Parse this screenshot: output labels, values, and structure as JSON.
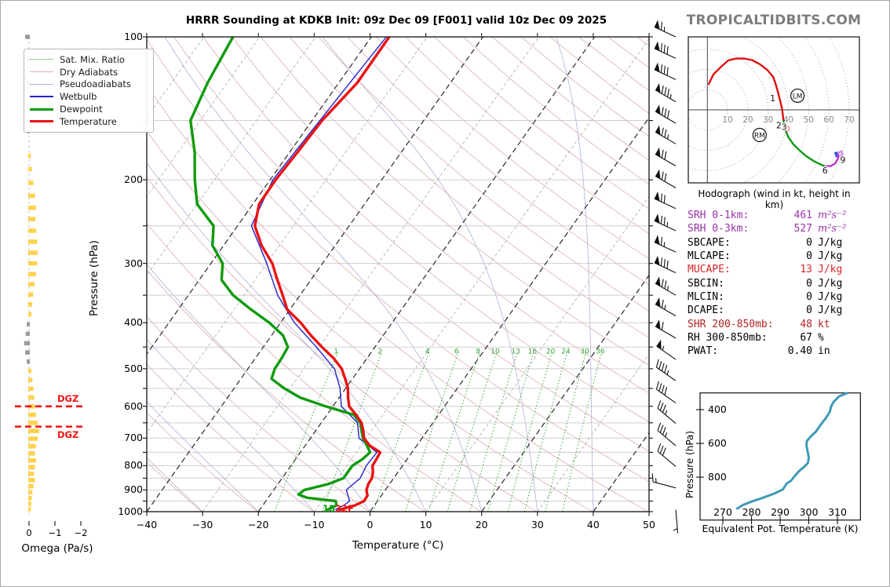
{
  "title": "HRRR Sounding at KDKB Init: 09z Dec 09 [F001] valid 10z Dec 09 2025",
  "watermark": "TROPICALTIDBITS.COM",
  "legend": {
    "items": [
      {
        "label": "Sat. Mix. Ratio",
        "key": "mix"
      },
      {
        "label": "Dry Adiabats",
        "key": "dry"
      },
      {
        "label": "Pseudoadiabats",
        "key": "pseudo"
      },
      {
        "label": "Wetbulb",
        "key": "wet"
      },
      {
        "label": "Dewpoint",
        "key": "dew"
      },
      {
        "label": "Temperature",
        "key": "tmp"
      }
    ]
  },
  "stats": {
    "rows": [
      {
        "label": "SRH 0-1km:",
        "value": "461",
        "unit": "m²s⁻²",
        "color": "#9932a8",
        "math": true
      },
      {
        "label": "SRH 0-3km:",
        "value": "527",
        "unit": "m²s⁻²",
        "color": "#9932a8",
        "math": true
      },
      {
        "label": "SBCAPE:",
        "value": "0",
        "unit": "J/kg",
        "color": "#000000"
      },
      {
        "label": "MLCAPE:",
        "value": "0",
        "unit": "J/kg",
        "color": "#000000"
      },
      {
        "label": "MUCAPE:",
        "value": "13",
        "unit": "J/kg",
        "color": "#d62728"
      },
      {
        "label": "SBCIN:",
        "value": "0",
        "unit": "J/kg",
        "color": "#000000"
      },
      {
        "label": "MLCIN:",
        "value": "0",
        "unit": "J/kg",
        "color": "#000000"
      },
      {
        "label": "DCAPE:",
        "value": "0",
        "unit": "J/kg",
        "color": "#000000"
      },
      {
        "label": "SHR 200-850mb:",
        "value": "48",
        "unit": "kt",
        "color": "#b22222"
      },
      {
        "label": "RH 300-850mb:",
        "value": "67",
        "unit": "%",
        "color": "#000000"
      },
      {
        "label": "PWAT:",
        "value": "0.40",
        "unit": "in",
        "color": "#000000"
      }
    ]
  },
  "chart_data": {
    "type": "skew-t sounding",
    "skewt": {
      "xlabel": "Temperature (°C)",
      "ylabel": "Pressure (hPa)",
      "temp_ticks": [
        -40,
        -30,
        -20,
        -10,
        0,
        10,
        20,
        30,
        40,
        50
      ],
      "pressure_ticks": [
        100,
        200,
        300,
        400,
        500,
        600,
        700,
        800,
        900,
        1000
      ],
      "temp_range": [
        -40,
        50
      ],
      "pressure_range": [
        100,
        1000
      ],
      "mixing_ratios": [
        1,
        2,
        4,
        6,
        8,
        10,
        13,
        16,
        20,
        24,
        30,
        36
      ],
      "surface_labels": {
        "dewpoint_f": "18",
        "temperature_f": "22F"
      },
      "dgz": {
        "label": "DGZ",
        "levels_hpa": [
          600,
          662
        ]
      },
      "temperature": [
        [
          100,
          -56.8
        ],
        [
          125,
          -56.7
        ],
        [
          150,
          -58.2
        ],
        [
          175,
          -58.6
        ],
        [
          200,
          -59
        ],
        [
          225,
          -58.9
        ],
        [
          250,
          -56.9
        ],
        [
          275,
          -53.2
        ],
        [
          300,
          -49
        ],
        [
          325,
          -46
        ],
        [
          350,
          -43.1
        ],
        [
          375,
          -40.5
        ],
        [
          400,
          -36.4
        ],
        [
          425,
          -33
        ],
        [
          450,
          -29.5
        ],
        [
          475,
          -26
        ],
        [
          500,
          -23.2
        ],
        [
          525,
          -21.3
        ],
        [
          550,
          -19.6
        ],
        [
          575,
          -18.4
        ],
        [
          600,
          -17.1
        ],
        [
          625,
          -14.8
        ],
        [
          650,
          -12.8
        ],
        [
          675,
          -11.5
        ],
        [
          700,
          -10.4
        ],
        [
          725,
          -8.5
        ],
        [
          750,
          -5.7
        ],
        [
          775,
          -5.5
        ],
        [
          800,
          -5.4
        ],
        [
          825,
          -4.5
        ],
        [
          850,
          -3.9
        ],
        [
          875,
          -3.8
        ],
        [
          900,
          -3.4
        ],
        [
          925,
          -2.5
        ],
        [
          950,
          -2.4
        ],
        [
          970,
          -3.5
        ],
        [
          990,
          -5.6
        ]
      ],
      "dewpoint": [
        [
          100,
          -84.8
        ],
        [
          125,
          -83.5
        ],
        [
          150,
          -81.8
        ],
        [
          175,
          -77
        ],
        [
          200,
          -73.5
        ],
        [
          225,
          -70
        ],
        [
          250,
          -64.3
        ],
        [
          275,
          -62
        ],
        [
          300,
          -57.9
        ],
        [
          325,
          -56
        ],
        [
          350,
          -52
        ],
        [
          375,
          -47
        ],
        [
          400,
          -42
        ],
        [
          425,
          -38
        ],
        [
          450,
          -35.6
        ],
        [
          475,
          -35.3
        ],
        [
          500,
          -35.2
        ],
        [
          525,
          -34.5
        ],
        [
          550,
          -31
        ],
        [
          575,
          -27
        ],
        [
          600,
          -21.3
        ],
        [
          625,
          -15.2
        ],
        [
          650,
          -13
        ],
        [
          675,
          -11.8
        ],
        [
          700,
          -10.6
        ],
        [
          725,
          -9
        ],
        [
          750,
          -7.5
        ],
        [
          775,
          -8
        ],
        [
          800,
          -9
        ],
        [
          825,
          -9
        ],
        [
          850,
          -9
        ],
        [
          875,
          -11
        ],
        [
          900,
          -14.5
        ],
        [
          920,
          -15
        ],
        [
          935,
          -13
        ],
        [
          950,
          -7.5
        ],
        [
          970,
          -6.8
        ],
        [
          990,
          -7.8
        ]
      ],
      "wetbulb": [
        [
          100,
          -57.3
        ],
        [
          150,
          -58.6
        ],
        [
          200,
          -59.5
        ],
        [
          250,
          -57.5
        ],
        [
          300,
          -50
        ],
        [
          350,
          -44
        ],
        [
          400,
          -37.5
        ],
        [
          450,
          -30.5
        ],
        [
          500,
          -24.5
        ],
        [
          550,
          -21
        ],
        [
          600,
          -18.5
        ],
        [
          650,
          -13.5
        ],
        [
          700,
          -11.3
        ],
        [
          750,
          -6.3
        ],
        [
          800,
          -6.5
        ],
        [
          850,
          -6
        ],
        [
          875,
          -6.5
        ],
        [
          900,
          -7
        ],
        [
          925,
          -6
        ],
        [
          950,
          -5
        ],
        [
          970,
          -5.5
        ],
        [
          990,
          -6.5
        ]
      ],
      "omega": {
        "title": "Omega (Pa/s)",
        "ticks": [
          0,
          -1,
          -2
        ],
        "bars": [
          [
            100,
            0.12
          ],
          [
            112,
            0.12
          ],
          [
            125,
            0.1
          ],
          [
            140,
            0.07
          ],
          [
            158,
            0.04
          ],
          [
            178,
            -0.04
          ],
          [
            190,
            -0.08
          ],
          [
            203,
            -0.14
          ],
          [
            216,
            -0.2
          ],
          [
            229,
            -0.24
          ],
          [
            242,
            -0.22
          ],
          [
            256,
            -0.25
          ],
          [
            270,
            -0.28
          ],
          [
            285,
            -0.3
          ],
          [
            300,
            -0.28
          ],
          [
            316,
            -0.24
          ],
          [
            332,
            -0.18
          ],
          [
            349,
            -0.13
          ],
          [
            366,
            -0.09
          ],
          [
            384,
            -0.06
          ],
          [
            403,
            0.06
          ],
          [
            422,
            0.1
          ],
          [
            442,
            0.16
          ],
          [
            462,
            0.12
          ],
          [
            483,
            0.06
          ],
          [
            505,
            -0.06
          ],
          [
            528,
            -0.1
          ],
          [
            551,
            -0.14
          ],
          [
            575,
            -0.17
          ],
          [
            600,
            -0.2
          ],
          [
            625,
            -0.24
          ],
          [
            650,
            -0.3
          ],
          [
            676,
            -0.36
          ],
          [
            702,
            -0.3
          ],
          [
            728,
            -0.24
          ],
          [
            754,
            -0.2
          ],
          [
            780,
            -0.24
          ],
          [
            806,
            -0.2
          ],
          [
            832,
            -0.16
          ],
          [
            858,
            -0.2
          ],
          [
            884,
            -0.14
          ],
          [
            910,
            -0.1
          ],
          [
            936,
            -0.08
          ],
          [
            962,
            -0.06
          ],
          [
            988,
            -0.04
          ]
        ]
      },
      "wind_barbs": [
        [
          100,
          65,
          295
        ],
        [
          111,
          80,
          295
        ],
        [
          123,
          80,
          295
        ],
        [
          137,
          85,
          300
        ],
        [
          152,
          80,
          300
        ],
        [
          168,
          75,
          300
        ],
        [
          187,
          70,
          300
        ],
        [
          208,
          70,
          300
        ],
        [
          230,
          70,
          295
        ],
        [
          256,
          75,
          295
        ],
        [
          284,
          65,
          295
        ],
        [
          314,
          80,
          295
        ],
        [
          350,
          75,
          300
        ],
        [
          387,
          65,
          300
        ],
        [
          431,
          60,
          300
        ],
        [
          478,
          55,
          305
        ],
        [
          530,
          45,
          305
        ],
        [
          590,
          40,
          305
        ],
        [
          652,
          35,
          310
        ],
        [
          726,
          35,
          310
        ],
        [
          803,
          30,
          310
        ],
        [
          891,
          15,
          285
        ],
        [
          991,
          5,
          175
        ]
      ]
    },
    "hodograph": {
      "caption": "Hodograph (wind in kt, height in km)",
      "ring_step_kt": 10,
      "ring_labels": [
        10,
        20,
        30,
        40,
        50,
        60,
        70
      ],
      "segments": [
        {
          "name": "0-3km",
          "color": "#dd1111",
          "points": [
            [
              0.7,
              12.8
            ],
            [
              3,
              17.5
            ],
            [
              7,
              21.5
            ],
            [
              10.3,
              24.4
            ],
            [
              14,
              25.3
            ],
            [
              18,
              25.4
            ],
            [
              22,
              24.6
            ],
            [
              26,
              22.5
            ],
            [
              29.5,
              19.8
            ],
            [
              32.5,
              16.3
            ],
            [
              33.8,
              12.5
            ],
            [
              34.8,
              9
            ],
            [
              35.8,
              5
            ],
            [
              36.8,
              1
            ],
            [
              37.3,
              -2.5
            ],
            [
              37.6,
              -5.5
            ]
          ]
        },
        {
          "name": "3-6km",
          "color": "#119911",
          "points": [
            [
              37.6,
              -5.5
            ],
            [
              38.3,
              -9.5
            ],
            [
              40,
              -13.5
            ],
            [
              42.5,
              -17
            ],
            [
              45.5,
              -20
            ],
            [
              49,
              -23
            ],
            [
              52.5,
              -25.3
            ],
            [
              55.5,
              -26.8
            ],
            [
              58.1,
              -27.9
            ]
          ]
        },
        {
          "name": "6-9km",
          "color": "#bb33cc",
          "points": [
            [
              58.1,
              -27.9
            ],
            [
              61,
              -27.7
            ],
            [
              63.2,
              -26.3
            ],
            [
              64.6,
              -23.8
            ],
            [
              64.6,
              -21.3
            ]
          ]
        },
        {
          "name": "9km+",
          "color": "#2244dd",
          "points": [
            [
              64.6,
              -21.3
            ],
            [
              63.2,
              -21.2
            ],
            [
              63.8,
              -23
            ]
          ]
        },
        {
          "name": "tail",
          "color": "#cf8fe8",
          "points": [
            [
              64.6,
              -21.3
            ],
            [
              66.2,
              -20.3
            ],
            [
              66.8,
              -22
            ],
            [
              65.5,
              -22.8
            ]
          ]
        }
      ],
      "height_labels": [
        {
          "text": "1",
          "u": 32.3,
          "v": 5.8
        },
        {
          "text": "2",
          "u": 35.3,
          "v": -7.6
        },
        {
          "text": "3",
          "u": 37.9,
          "v": -8.3
        },
        {
          "text": "6",
          "u": 58.1,
          "v": -29.9
        },
        {
          "text": "9",
          "u": 66.9,
          "v": -24.6
        }
      ],
      "markers": [
        {
          "text": "LM",
          "u": 44.5,
          "v": 7.0
        },
        {
          "text": "RM",
          "u": 25.8,
          "v": -12.4
        }
      ],
      "storm_dot": {
        "u": 39.4,
        "v": -9.3,
        "color": "#ff7f9e"
      }
    },
    "theta_e": {
      "xlabel": "Equivalent Pot. Temperature (K)",
      "ylabel": "Pressure (hPa)",
      "x_ticks": [
        270,
        280,
        290,
        300,
        310
      ],
      "y_ticks": [
        400,
        600,
        800
      ],
      "color": "#3f9ab6",
      "points": [
        [
          275,
          986
        ],
        [
          277,
          965
        ],
        [
          280,
          945
        ],
        [
          284,
          922
        ],
        [
          288,
          897
        ],
        [
          291,
          872
        ],
        [
          292.3,
          837
        ],
        [
          293.7,
          823
        ],
        [
          295,
          795
        ],
        [
          296.4,
          767
        ],
        [
          298.6,
          735
        ],
        [
          299.7,
          716
        ],
        [
          300,
          684
        ],
        [
          299.7,
          656
        ],
        [
          299.2,
          614
        ],
        [
          299.3,
          586
        ],
        [
          300.5,
          563
        ],
        [
          302.5,
          530
        ],
        [
          304,
          493
        ],
        [
          305.9,
          451
        ],
        [
          307.3,
          414
        ],
        [
          307.8,
          381
        ],
        [
          308.7,
          353
        ],
        [
          310.6,
          321
        ],
        [
          313.4,
          302
        ]
      ]
    }
  }
}
